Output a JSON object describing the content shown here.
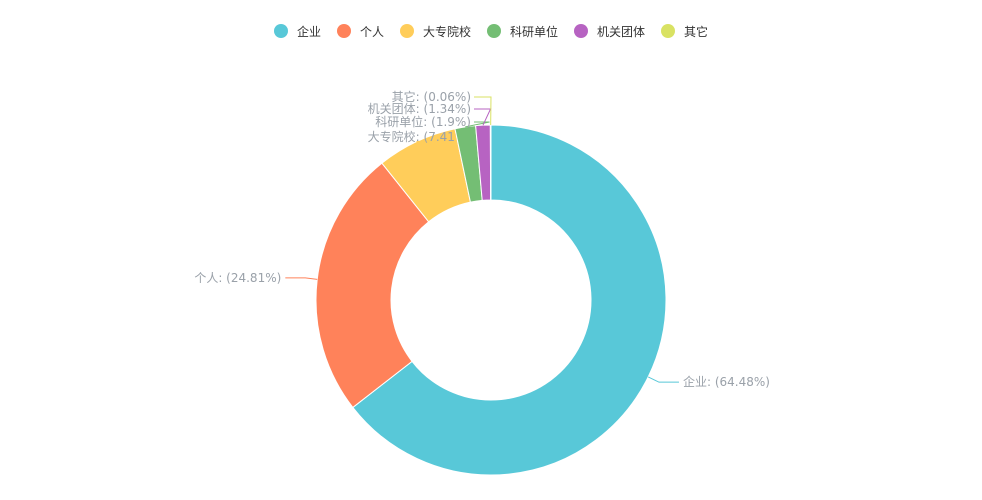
{
  "chart_data": {
    "type": "pie",
    "variant": "donut",
    "categories": [
      "企业",
      "个人",
      "大专院校",
      "科研单位",
      "机关团体",
      "其它"
    ],
    "values": [
      64.48,
      24.81,
      7.41,
      1.9,
      1.34,
      0.06
    ],
    "labels": [
      "企业: (64.48%)",
      "个人: (24.81%)",
      "大专院校: (7.41%)",
      "科研单位: (1.9%)",
      "机关团体: (1.34%)",
      "其它: (0.06%)"
    ],
    "colors": [
      "#58c8d8",
      "#ff825a",
      "#ffcd5a",
      "#74be74",
      "#b763c2",
      "#d9e263"
    ],
    "legend_position": "top-center",
    "title": ""
  }
}
